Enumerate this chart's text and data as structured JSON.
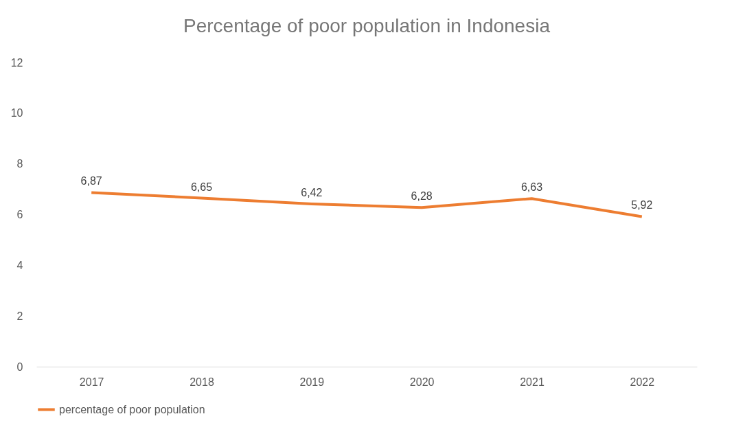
{
  "chart_data": {
    "type": "line",
    "title": "Percentage of poor population in Indonesia",
    "categories": [
      "2017",
      "2018",
      "2019",
      "2020",
      "2021",
      "2022"
    ],
    "series": [
      {
        "name": "percentage of poor population",
        "color": "#ed7d31",
        "values": [
          6.87,
          6.65,
          6.42,
          6.28,
          6.63,
          5.92
        ],
        "value_labels": [
          "6,87",
          "6,65",
          "6,42",
          "6,28",
          "6,63",
          "5,92"
        ]
      }
    ],
    "ylim": [
      0,
      12
    ],
    "yticks": [
      0,
      2,
      4,
      6,
      8,
      10,
      12
    ],
    "grid": false,
    "legend": "bottom",
    "marker": "none",
    "line_style": "solid"
  }
}
